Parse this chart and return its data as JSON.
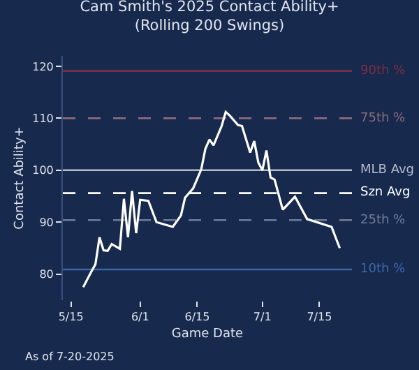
{
  "chart_data": {
    "type": "line",
    "title": "Cam Smith's 2025 Contact Ability+\n(Rolling 200 Swings)",
    "xlabel": "Game Date",
    "ylabel": "Contact Ability+",
    "x": [
      "2025-05-18",
      "2025-05-20",
      "2025-05-21",
      "2025-05-22",
      "2025-05-23",
      "2025-05-24",
      "2025-05-25",
      "2025-05-27",
      "2025-05-28",
      "2025-05-29",
      "2025-05-30",
      "2025-05-31",
      "2025-06-01",
      "2025-06-03",
      "2025-06-05",
      "2025-06-09",
      "2025-06-11",
      "2025-06-12",
      "2025-06-14",
      "2025-06-16",
      "2025-06-17",
      "2025-06-18",
      "2025-06-19",
      "2025-06-21",
      "2025-06-22",
      "2025-06-23",
      "2025-06-25",
      "2025-06-26",
      "2025-06-28",
      "2025-06-29",
      "2025-06-30",
      "2025-07-01",
      "2025-07-02",
      "2025-07-03",
      "2025-07-04",
      "2025-07-06",
      "2025-07-09",
      "2025-07-12",
      "2025-07-18",
      "2025-07-20"
    ],
    "series": [
      {
        "color": "#ffffff",
        "values": [
          77.5,
          80.5,
          81.9,
          87.1,
          84.6,
          84.5,
          85.8,
          84.9,
          94.5,
          87.1,
          96.0,
          87.9,
          94.3,
          94.1,
          90.0,
          89.1,
          91.3,
          94.7,
          96.5,
          100.2,
          104.1,
          105.9,
          104.8,
          108.5,
          111.2,
          110.5,
          108.7,
          108.5,
          103.4,
          105.6,
          101.5,
          100.0,
          103.8,
          98.6,
          98.2,
          92.4,
          94.9,
          90.6,
          89.1,
          85.0
        ]
      }
    ],
    "xlim": [
      "2025-05-13",
      "2025-07-23"
    ],
    "xticks": [
      {
        "value": "2025-05-15",
        "label": "5/15"
      },
      {
        "value": "2025-06-01",
        "label": "6/1"
      },
      {
        "value": "2025-06-15",
        "label": "6/15"
      },
      {
        "value": "2025-07-01",
        "label": "7/1"
      },
      {
        "value": "2025-07-15",
        "label": "7/15"
      }
    ],
    "ylim": [
      75,
      122
    ],
    "yticks": [
      80,
      90,
      100,
      110,
      120
    ],
    "ref_lines": [
      {
        "axis": "y",
        "value": 119.1,
        "label": "90th %",
        "color": "#7a2e45",
        "line_style": "solid"
      },
      {
        "axis": "y",
        "value": 110,
        "label": "75th %",
        "color": "#8a6a7c",
        "line_style": "dashed"
      },
      {
        "axis": "y",
        "value": 100,
        "label": "MLB Avg",
        "color": "#b4bac8",
        "line_style": "solid"
      },
      {
        "axis": "y",
        "value": 95.6,
        "label": "Szn Avg",
        "color": "#ffffff",
        "line_style": "dashed"
      },
      {
        "axis": "y",
        "value": 90.4,
        "label": "25th %",
        "color": "#6e7c9c",
        "line_style": "dashed"
      },
      {
        "axis": "y",
        "value": 80.9,
        "label": "10th %",
        "color": "#3d66a8",
        "line_style": "solid"
      }
    ],
    "annotations": [
      "As of 7-20-2025"
    ]
  }
}
